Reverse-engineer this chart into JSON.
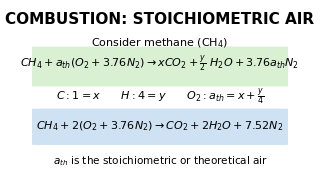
{
  "title": "COMBUSTION: STOICHIOMETRIC AIR",
  "subtitle": "Consider methane (CH$_4$)",
  "eq1": "$CH_4 + a_{th}\\left(O_2 + 3.76N_2\\right) \\rightarrow xCO_2 + \\frac{y}{2}\\ H_2O + 3.76a_{th}N_2$",
  "eq2": "$C: 1 = x \\qquad H: 4 = y \\qquad O_2: a_{th} = x + \\frac{y}{4}$",
  "eq3": "$CH_4 + 2\\left(O_2 + 3.76N_2\\right) \\rightarrow CO_2 + 2H_2O + 7.52N_2$",
  "footnote": "$a_{th}$ is the stoichiometric or theoretical air",
  "bg_color": "#ffffff",
  "title_color": "#000000",
  "box1_color": "#d9f0d3",
  "box2_color": "#cfe2f3",
  "title_fontsize": 11,
  "subtitle_fontsize": 8,
  "eq_fontsize": 8,
  "footnote_fontsize": 7.5
}
